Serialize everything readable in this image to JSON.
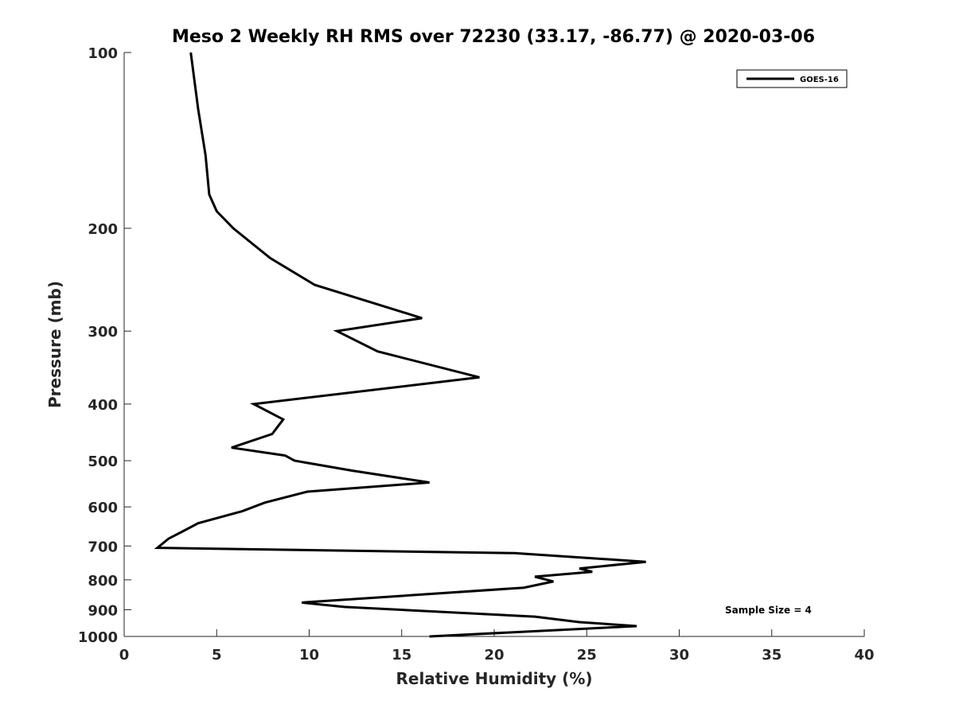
{
  "chart_data": {
    "type": "line",
    "title": "Meso 2 Weekly RH RMS over 72230 (33.17, -86.77) @ 2020-03-06",
    "xlabel": "Relative Humidity (%)",
    "ylabel": "Pressure (mb)",
    "xlim": [
      0,
      40
    ],
    "ylim": [
      100,
      1000
    ],
    "y_scale": "log",
    "y_reversed": true,
    "x_ticks": [
      "0",
      "5",
      "10",
      "15",
      "20",
      "25",
      "30",
      "35",
      "40"
    ],
    "y_ticks": [
      "100",
      "200",
      "300",
      "400",
      "500",
      "600",
      "700",
      "800",
      "900",
      "1000"
    ],
    "grid": false,
    "legend_position": "top-right",
    "series": [
      {
        "name": "GOES-16",
        "color": "#000000",
        "x": [
          3.6,
          4.0,
          4.4,
          4.6,
          5.0,
          5.9,
          7.9,
          10.3,
          16.1,
          11.5,
          13.7,
          19.2,
          7.0,
          8.6,
          8.0,
          5.8,
          8.7,
          9.2,
          12.3,
          16.5,
          9.9,
          7.6,
          6.4,
          4.0,
          3.2,
          2.4,
          1.8,
          21.1,
          28.2,
          24.6,
          25.3,
          22.2,
          23.2,
          21.6,
          9.6,
          11.9,
          22.2,
          24.6,
          27.7,
          16.5
        ],
        "y": [
          100,
          125,
          150,
          175,
          187,
          200,
          225,
          250,
          285,
          300,
          325,
          360,
          400,
          425,
          450,
          475,
          490,
          500,
          520,
          545,
          565,
          590,
          610,
          640,
          660,
          680,
          705,
          720,
          745,
          765,
          775,
          790,
          805,
          825,
          875,
          890,
          925,
          945,
          960,
          1000
        ]
      }
    ],
    "annotations": [
      "Sample Size = 4"
    ]
  }
}
